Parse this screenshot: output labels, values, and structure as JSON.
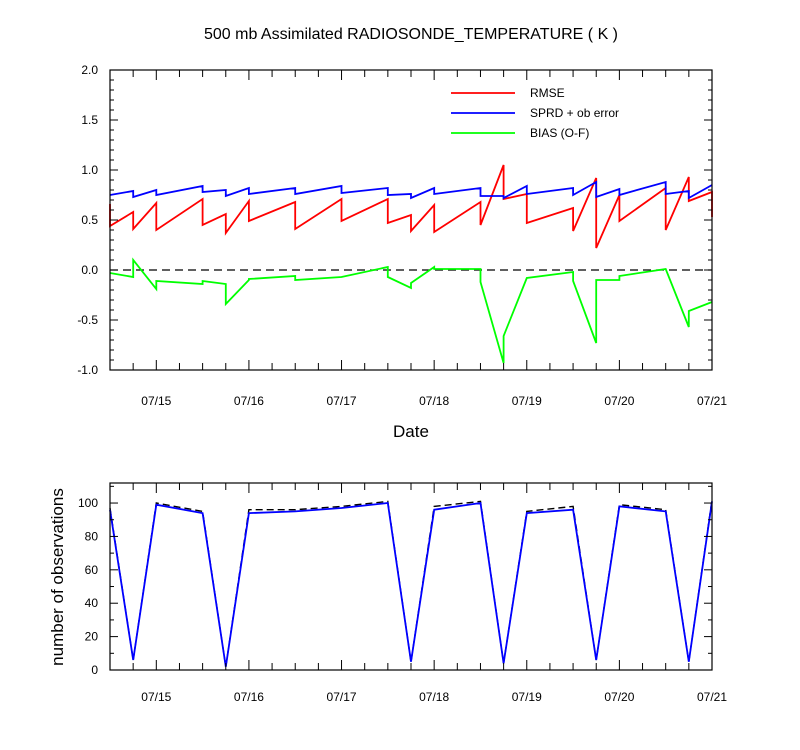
{
  "colors": {
    "rmse": "#ff0000",
    "sprd": "#0000ff",
    "bias": "#00ff00",
    "obs_used": "#0000ff",
    "obs_total": "#000000"
  },
  "chart_data": [
    {
      "type": "line",
      "title": "500 mb Assimilated RADIOSONDE_TEMPERATURE ( K )",
      "xlabel": "Date",
      "ylabel": "",
      "xlim": [
        0,
        6.5
      ],
      "ylim": [
        -1.0,
        2.0
      ],
      "x_tick_values": [
        0.5,
        1.5,
        2.5,
        3.5,
        4.5,
        5.5,
        6.5
      ],
      "x_tick_labels": [
        "07/15",
        "07/16",
        "07/17",
        "07/18",
        "07/19",
        "07/20",
        "07/21"
      ],
      "y_tick_values": [
        -1.0,
        -0.5,
        0.0,
        0.5,
        1.0,
        1.5,
        2.0
      ],
      "y_tick_labels": [
        "-1.0",
        "-0.5",
        "0.0",
        "0.5",
        "1.0",
        "1.5",
        "2.0"
      ],
      "reference_line": 0.0,
      "legend": "top-right",
      "series": [
        {
          "name": "RMSE",
          "color_key": "rmse",
          "points": [
            [
              0,
              0.66
            ],
            [
              0,
              0.44
            ],
            [
              0.25,
              0.58
            ],
            [
              0.25,
              0.41
            ],
            [
              0.5,
              0.67
            ],
            [
              0.5,
              0.4
            ],
            [
              1.0,
              0.71
            ],
            [
              1.0,
              0.45
            ],
            [
              1.25,
              0.56
            ],
            [
              1.25,
              0.37
            ],
            [
              1.5,
              0.69
            ],
            [
              1.5,
              0.49
            ],
            [
              2.0,
              0.68
            ],
            [
              2.0,
              0.41
            ],
            [
              2.5,
              0.71
            ],
            [
              2.5,
              0.49
            ],
            [
              3.0,
              0.71
            ],
            [
              3.0,
              0.47
            ],
            [
              3.25,
              0.55
            ],
            [
              3.25,
              0.39
            ],
            [
              3.5,
              0.65
            ],
            [
              3.5,
              0.38
            ],
            [
              4.0,
              0.68
            ],
            [
              4.0,
              0.45
            ],
            [
              4.25,
              1.05
            ],
            [
              4.25,
              0.71
            ],
            [
              4.5,
              0.76
            ],
            [
              4.5,
              0.47
            ],
            [
              5.0,
              0.62
            ],
            [
              5.0,
              0.39
            ],
            [
              5.25,
              0.92
            ],
            [
              5.25,
              0.22
            ],
            [
              5.5,
              0.75
            ],
            [
              5.5,
              0.49
            ],
            [
              6.0,
              0.82
            ],
            [
              6.0,
              0.4
            ],
            [
              6.25,
              0.93
            ],
            [
              6.25,
              0.69
            ],
            [
              6.5,
              0.78
            ],
            [
              6.5,
              0.53
            ]
          ]
        },
        {
          "name": "SPRD + ob error",
          "color_key": "sprd",
          "points": [
            [
              0,
              0.75
            ],
            [
              0.25,
              0.79
            ],
            [
              0.25,
              0.73
            ],
            [
              0.5,
              0.8
            ],
            [
              0.5,
              0.75
            ],
            [
              1.0,
              0.84
            ],
            [
              1.0,
              0.78
            ],
            [
              1.25,
              0.8
            ],
            [
              1.25,
              0.74
            ],
            [
              1.5,
              0.82
            ],
            [
              1.5,
              0.76
            ],
            [
              2.0,
              0.82
            ],
            [
              2.0,
              0.76
            ],
            [
              2.5,
              0.84
            ],
            [
              2.5,
              0.77
            ],
            [
              3.0,
              0.82
            ],
            [
              3.0,
              0.75
            ],
            [
              3.25,
              0.76
            ],
            [
              3.25,
              0.72
            ],
            [
              3.5,
              0.82
            ],
            [
              3.5,
              0.76
            ],
            [
              4.0,
              0.82
            ],
            [
              4.0,
              0.74
            ],
            [
              4.25,
              0.74
            ],
            [
              4.25,
              0.72
            ],
            [
              4.5,
              0.84
            ],
            [
              4.5,
              0.76
            ],
            [
              5.0,
              0.82
            ],
            [
              5.0,
              0.75
            ],
            [
              5.25,
              0.88
            ],
            [
              5.25,
              0.73
            ],
            [
              5.5,
              0.81
            ],
            [
              5.5,
              0.75
            ],
            [
              6.0,
              0.88
            ],
            [
              6.0,
              0.76
            ],
            [
              6.25,
              0.79
            ],
            [
              6.25,
              0.72
            ],
            [
              6.5,
              0.85
            ]
          ]
        },
        {
          "name": "BIAS (O-F)",
          "color_key": "bias",
          "points": [
            [
              0,
              -0.03
            ],
            [
              0.25,
              -0.07
            ],
            [
              0.25,
              0.1
            ],
            [
              0.5,
              -0.19
            ],
            [
              0.5,
              -0.11
            ],
            [
              1.0,
              -0.14
            ],
            [
              1.0,
              -0.11
            ],
            [
              1.25,
              -0.14
            ],
            [
              1.25,
              -0.34
            ],
            [
              1.5,
              -0.1
            ],
            [
              1.5,
              -0.09
            ],
            [
              2.0,
              -0.06
            ],
            [
              2.0,
              -0.1
            ],
            [
              2.5,
              -0.07
            ],
            [
              2.5,
              -0.07
            ],
            [
              3.0,
              0.03
            ],
            [
              3.0,
              -0.07
            ],
            [
              3.25,
              -0.18
            ],
            [
              3.25,
              -0.13
            ],
            [
              3.5,
              0.03
            ],
            [
              3.5,
              0.01
            ],
            [
              4.0,
              0.01
            ],
            [
              4.0,
              -0.12
            ],
            [
              4.25,
              -0.93
            ],
            [
              4.25,
              -0.66
            ],
            [
              4.5,
              -0.08
            ],
            [
              4.5,
              -0.08
            ],
            [
              5.0,
              -0.02
            ],
            [
              5.0,
              -0.11
            ],
            [
              5.25,
              -0.73
            ],
            [
              5.25,
              -0.1
            ],
            [
              5.5,
              -0.1
            ],
            [
              5.5,
              -0.06
            ],
            [
              6.0,
              0.01
            ],
            [
              6.0,
              0.01
            ],
            [
              6.25,
              -0.57
            ],
            [
              6.25,
              -0.41
            ],
            [
              6.5,
              -0.32
            ]
          ]
        }
      ]
    },
    {
      "type": "line",
      "title": "",
      "xlabel": "",
      "ylabel": "number of observations",
      "xlim": [
        0,
        6.5
      ],
      "ylim": [
        0,
        112
      ],
      "x_tick_values": [
        0.5,
        1.5,
        2.5,
        3.5,
        4.5,
        5.5,
        6.5
      ],
      "x_tick_labels": [
        "07/15",
        "07/16",
        "07/17",
        "07/18",
        "07/19",
        "07/20",
        "07/21"
      ],
      "y_tick_values": [
        0,
        20,
        40,
        60,
        80,
        100
      ],
      "y_tick_labels": [
        "0",
        "20",
        "40",
        "60",
        "80",
        "100"
      ],
      "series": [
        {
          "color_key": "obs_total",
          "dashed": true,
          "points": [
            [
              0,
              97
            ],
            [
              0.25,
              6
            ],
            [
              0.5,
              100
            ],
            [
              1.0,
              95
            ],
            [
              1.25,
              2
            ],
            [
              1.5,
              96
            ],
            [
              2.0,
              96
            ],
            [
              2.5,
              98
            ],
            [
              3.0,
              101
            ],
            [
              3.25,
              5
            ],
            [
              3.5,
              98
            ],
            [
              4.0,
              101
            ],
            [
              4.25,
              4
            ],
            [
              4.5,
              95
            ],
            [
              5.0,
              98
            ],
            [
              5.25,
              6
            ],
            [
              5.5,
              99
            ],
            [
              6.0,
              96
            ],
            [
              6.25,
              5
            ],
            [
              6.5,
              102
            ]
          ]
        },
        {
          "color_key": "obs_used",
          "dashed": false,
          "points": [
            [
              0,
              96
            ],
            [
              0.25,
              6
            ],
            [
              0.5,
              99
            ],
            [
              1.0,
              94
            ],
            [
              1.25,
              2
            ],
            [
              1.5,
              94
            ],
            [
              2.0,
              95
            ],
            [
              2.5,
              97
            ],
            [
              3.0,
              100
            ],
            [
              3.25,
              5
            ],
            [
              3.5,
              96
            ],
            [
              4.0,
              100
            ],
            [
              4.25,
              4
            ],
            [
              4.5,
              94
            ],
            [
              5.0,
              96
            ],
            [
              5.25,
              6
            ],
            [
              5.5,
              98
            ],
            [
              6.0,
              95
            ],
            [
              6.25,
              5
            ],
            [
              6.5,
              101
            ]
          ]
        }
      ]
    }
  ]
}
